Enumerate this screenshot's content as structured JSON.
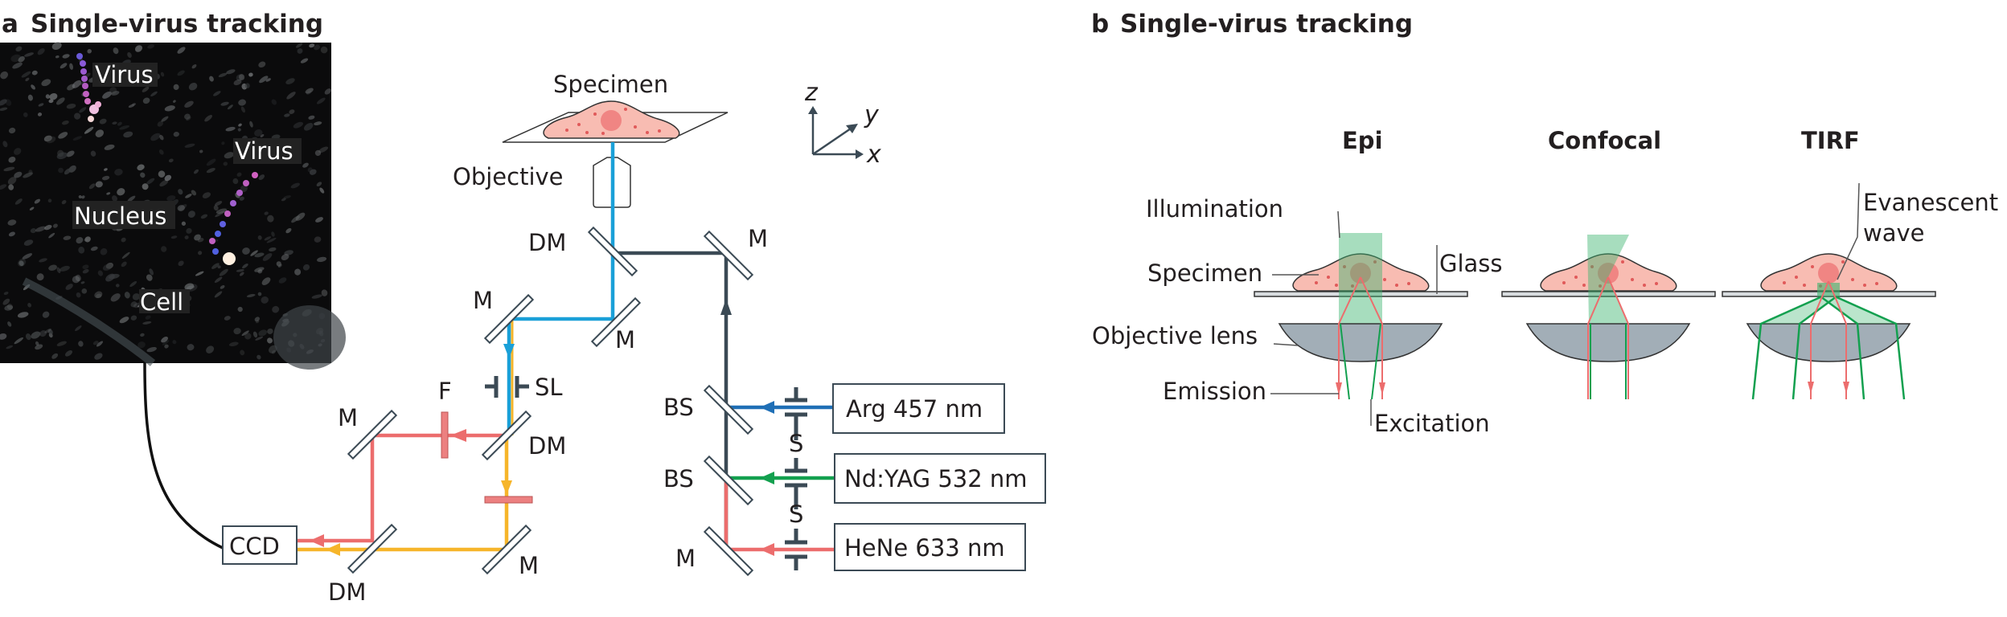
{
  "panel_a": {
    "letter": "a",
    "title": "Single-virus tracking",
    "image_labels": {
      "virus_1": "Virus",
      "virus_2": "Virus",
      "nucleus": "Nucleus",
      "cell": "Cell"
    },
    "setup": {
      "specimen": "Specimen",
      "objective": "Objective",
      "axes": {
        "z": "z",
        "y": "y",
        "x": "x"
      },
      "components": {
        "dm_top": "DM",
        "m_blue_left": "M",
        "m_blue_right": "M",
        "m_top_right": "M",
        "sl": "SL",
        "f": "F",
        "dm_mid": "DM",
        "m_red": "M",
        "ccd": "CCD",
        "dm_ccd": "DM",
        "m_yellow": "M",
        "bs_1": "BS",
        "bs_2": "BS",
        "m_laser": "M",
        "s_1": "S",
        "s_2": "S"
      },
      "lasers": [
        "Arg 457 nm",
        "Nd:YAG 532 nm",
        "HeNe 633 nm"
      ]
    }
  },
  "panel_b": {
    "letter": "b",
    "title": "Single-virus tracking",
    "modes": [
      "Epi",
      "Confocal",
      "TIRF"
    ],
    "labels": {
      "illumination": "Illumination",
      "specimen": "Specimen",
      "glass": "Glass",
      "objective_lens": "Objective lens",
      "emission": "Emission",
      "excitation": "Excitation",
      "evanescent_1": "Evanescent",
      "evanescent_2": "wave"
    }
  },
  "colors": {
    "beam_blue": "#1aa0d8",
    "arg_blue": "#1f6fb6",
    "green": "#13a04f",
    "red": "#ec6d6d",
    "yellow": "#f6b52a",
    "dark": "#3b4a55",
    "cell": "#f8bcb2",
    "lens": "#a2aeb7"
  }
}
